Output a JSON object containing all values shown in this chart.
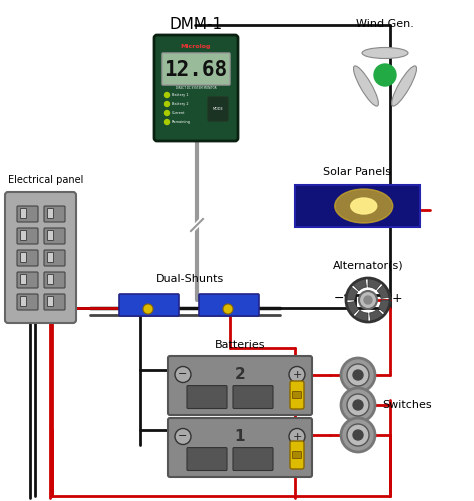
{
  "bg_color": "#ffffff",
  "labels": {
    "dmm": "DMM-1",
    "wind": "Wind Gen.",
    "solar": "Solar Panels",
    "alternator": "Alternator(s)",
    "electrical": "Electrical panel",
    "dual_shunts": "Dual-Shunts",
    "batteries": "Batteries",
    "switches": "Switches"
  },
  "display_value": "12.68",
  "battery1_label": "1",
  "battery2_label": "2",
  "red": "#cc0000",
  "black": "#111111",
  "lw": 2.0
}
